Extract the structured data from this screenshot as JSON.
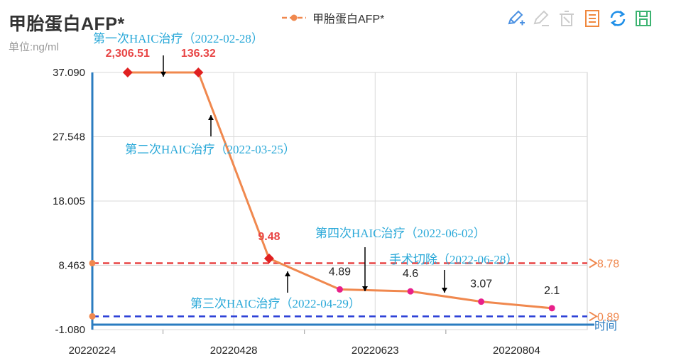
{
  "header": {
    "title": "甲胎蛋白AFP*",
    "unit": "单位:ng/ml",
    "legend_label": "甲胎蛋白AFP*"
  },
  "toolbox": [
    {
      "name": "edit-add-icon",
      "color": "#4a90e2"
    },
    {
      "name": "edit-icon",
      "color": "#cccccc"
    },
    {
      "name": "clear-icon",
      "color": "#cccccc"
    },
    {
      "name": "data-view-icon",
      "color": "#f0883e"
    },
    {
      "name": "refresh-icon",
      "color": "#1f8fe8"
    },
    {
      "name": "save-icon",
      "color": "#3cb371"
    }
  ],
  "chart_data": {
    "type": "line",
    "title": "甲胎蛋白AFP*",
    "ylabel": "单位:ng/ml",
    "xlabel": "时间",
    "ylim": [
      -1.08,
      37.09
    ],
    "y_ticks": [
      "37.090",
      "27.548",
      "18.005",
      "8.463",
      "-1.080"
    ],
    "x_ticks": [
      "20220224",
      "20220428",
      "20220623",
      "20220804"
    ],
    "series": [
      {
        "name": "甲胎蛋白AFP*",
        "color": "#f0884e",
        "points": [
          {
            "x": 0.5,
            "y": 37.09,
            "label": "2,306.51",
            "over_range": true
          },
          {
            "x": 1.5,
            "y": 37.09,
            "label": "136.32",
            "over_range": true
          },
          {
            "x": 2.5,
            "y": 9.48,
            "label": "9.48",
            "over_range": true
          },
          {
            "x": 3.5,
            "y": 4.89,
            "label": "4.89",
            "over_range": false
          },
          {
            "x": 4.5,
            "y": 4.6,
            "label": "4.6",
            "over_range": false
          },
          {
            "x": 5.5,
            "y": 3.07,
            "label": "3.07",
            "over_range": false
          },
          {
            "x": 6.5,
            "y": 2.1,
            "label": "2.1",
            "over_range": false
          }
        ]
      }
    ],
    "reference_lines": [
      {
        "name": "upper-limit",
        "value": 8.78,
        "label": "8.78",
        "color": "#e84545",
        "label_color": "#f0884e"
      },
      {
        "name": "lower-limit",
        "value": 0.89,
        "label": "0.89",
        "color": "#2b3fd6",
        "label_color": "#f0884e"
      }
    ],
    "annotations": [
      {
        "text": "第一次HAIC治疗（2022-02-28）",
        "x": 1.0,
        "direction": "down"
      },
      {
        "text": "第二次HAIC治疗（2022-03-25）",
        "x": 1.85,
        "direction": "up"
      },
      {
        "text": "第三次HAIC治疗（2022-04-29）",
        "x": 2.75,
        "direction": "up"
      },
      {
        "text": "第四次HAIC治疗（2022-06-02）",
        "x": 4.0,
        "direction": "down"
      },
      {
        "text": "手术切除（2022-06-28）",
        "x": 5.0,
        "direction": "down"
      }
    ]
  }
}
